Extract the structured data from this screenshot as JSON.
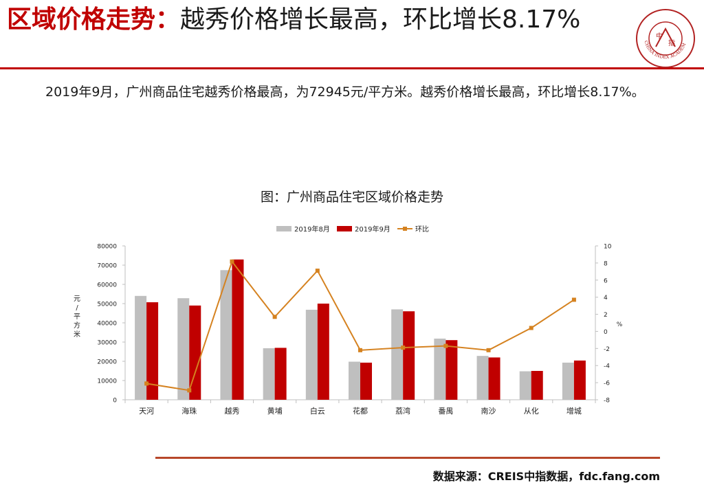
{
  "header": {
    "title_highlight": "区域价格走势：",
    "title_rest": "越秀价格增长最高，环比增长8.17%"
  },
  "logo": {
    "center_chars": [
      "中",
      "指"
    ],
    "ring_text": "CHINA INDEX ACADEMY",
    "color": "#b22222"
  },
  "body": {
    "paragraph": "2019年9月，广州商品住宅越秀价格最高，为72945元/平方米。越秀价格增长最高，环比增长8.17%。"
  },
  "chart_data": {
    "type": "bar",
    "title": "图：广州商品住宅区域价格走势",
    "categories": [
      "天河",
      "海珠",
      "越秀",
      "黄埔",
      "白云",
      "花都",
      "荔湾",
      "番禺",
      "南沙",
      "从化",
      "增城"
    ],
    "series": [
      {
        "name": "2019年8月",
        "type": "bar",
        "axis": "left",
        "color": "#bfbfbf",
        "values": [
          54000,
          52800,
          67400,
          26800,
          46800,
          19800,
          47000,
          31800,
          22800,
          14800,
          19300
        ]
      },
      {
        "name": "2019年9月",
        "type": "bar",
        "axis": "left",
        "color": "#c00000",
        "values": [
          50700,
          49000,
          72945,
          27000,
          50000,
          19300,
          46000,
          31000,
          22000,
          15000,
          20400
        ]
      },
      {
        "name": "环比",
        "type": "line",
        "axis": "right",
        "color": "#d58220",
        "values": [
          -6.1,
          -6.9,
          8.17,
          1.7,
          7.1,
          -2.2,
          -1.9,
          -1.7,
          -2.2,
          0.4,
          3.7
        ]
      }
    ],
    "y_left": {
      "label": [
        "元",
        "/",
        "平",
        "方",
        "米"
      ],
      "ticks": [
        0,
        10000,
        20000,
        30000,
        40000,
        50000,
        60000,
        70000,
        80000
      ],
      "range": [
        0,
        80000
      ]
    },
    "y_right": {
      "label": "%",
      "ticks": [
        -8,
        -6,
        -4,
        -2,
        0,
        2,
        4,
        6,
        8,
        10
      ],
      "range": [
        -8,
        10
      ]
    },
    "legend_position": "top-center"
  },
  "footer": {
    "source": "数据来源：CREIS中指数据，fdc.fang.com"
  }
}
